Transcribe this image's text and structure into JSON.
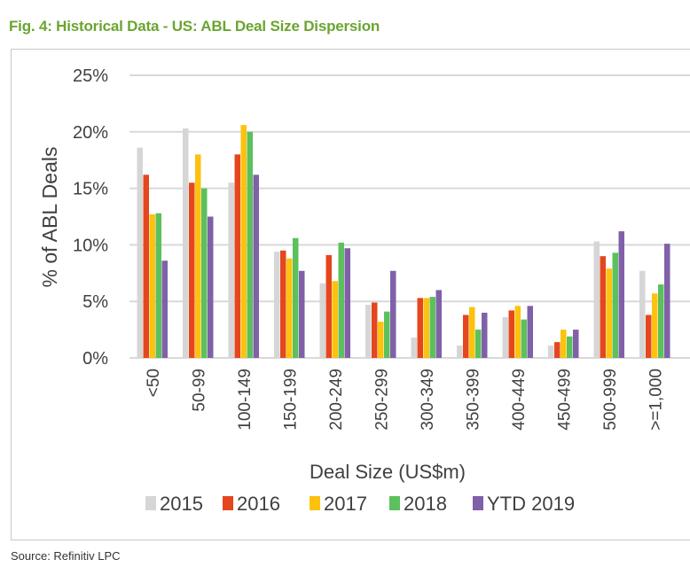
{
  "figure": {
    "title": "Fig. 4: Historical Data - US: ABL Deal Size Dispersion",
    "title_color": "#6aa530",
    "source": "Source: Refinitiv LPC"
  },
  "chart_data": {
    "type": "bar",
    "title": "",
    "xlabel": "Deal Size (US$m)",
    "ylabel": "% of ABL Deals",
    "ylim": [
      0,
      25
    ],
    "yticks": [
      "0%",
      "5%",
      "10%",
      "15%",
      "20%",
      "25%"
    ],
    "ytick_values": [
      0,
      5,
      10,
      15,
      20,
      25
    ],
    "grid": true,
    "legend_position": "bottom",
    "categories": [
      "<50",
      "50-99",
      "100-149",
      "150-199",
      "200-249",
      "250-299",
      "300-349",
      "350-399",
      "400-449",
      "450-499",
      "500-999",
      ">=1,000"
    ],
    "series": [
      {
        "name": "2015",
        "color": "#d6d6d6",
        "values": [
          18.6,
          20.3,
          15.5,
          9.4,
          6.6,
          4.7,
          1.8,
          1.1,
          3.6,
          1.1,
          10.3,
          7.7
        ]
      },
      {
        "name": "2016",
        "color": "#e4471e",
        "values": [
          16.2,
          15.5,
          18.0,
          9.5,
          9.1,
          4.9,
          5.3,
          3.8,
          4.2,
          1.4,
          9.0,
          3.8
        ]
      },
      {
        "name": "2017",
        "color": "#fdc20e",
        "values": [
          12.7,
          18.0,
          20.6,
          8.8,
          6.8,
          3.2,
          5.3,
          4.5,
          4.6,
          2.5,
          7.9,
          5.7
        ]
      },
      {
        "name": "2018",
        "color": "#5cc05c",
        "values": [
          12.8,
          15.0,
          20.0,
          10.6,
          10.2,
          4.1,
          5.4,
          2.5,
          3.4,
          1.9,
          9.3,
          6.5
        ]
      },
      {
        "name": "YTD 2019",
        "color": "#8060a8",
        "values": [
          8.6,
          12.5,
          16.2,
          7.7,
          9.7,
          7.7,
          6.0,
          4.0,
          4.6,
          2.5,
          11.2,
          10.1
        ]
      }
    ]
  }
}
